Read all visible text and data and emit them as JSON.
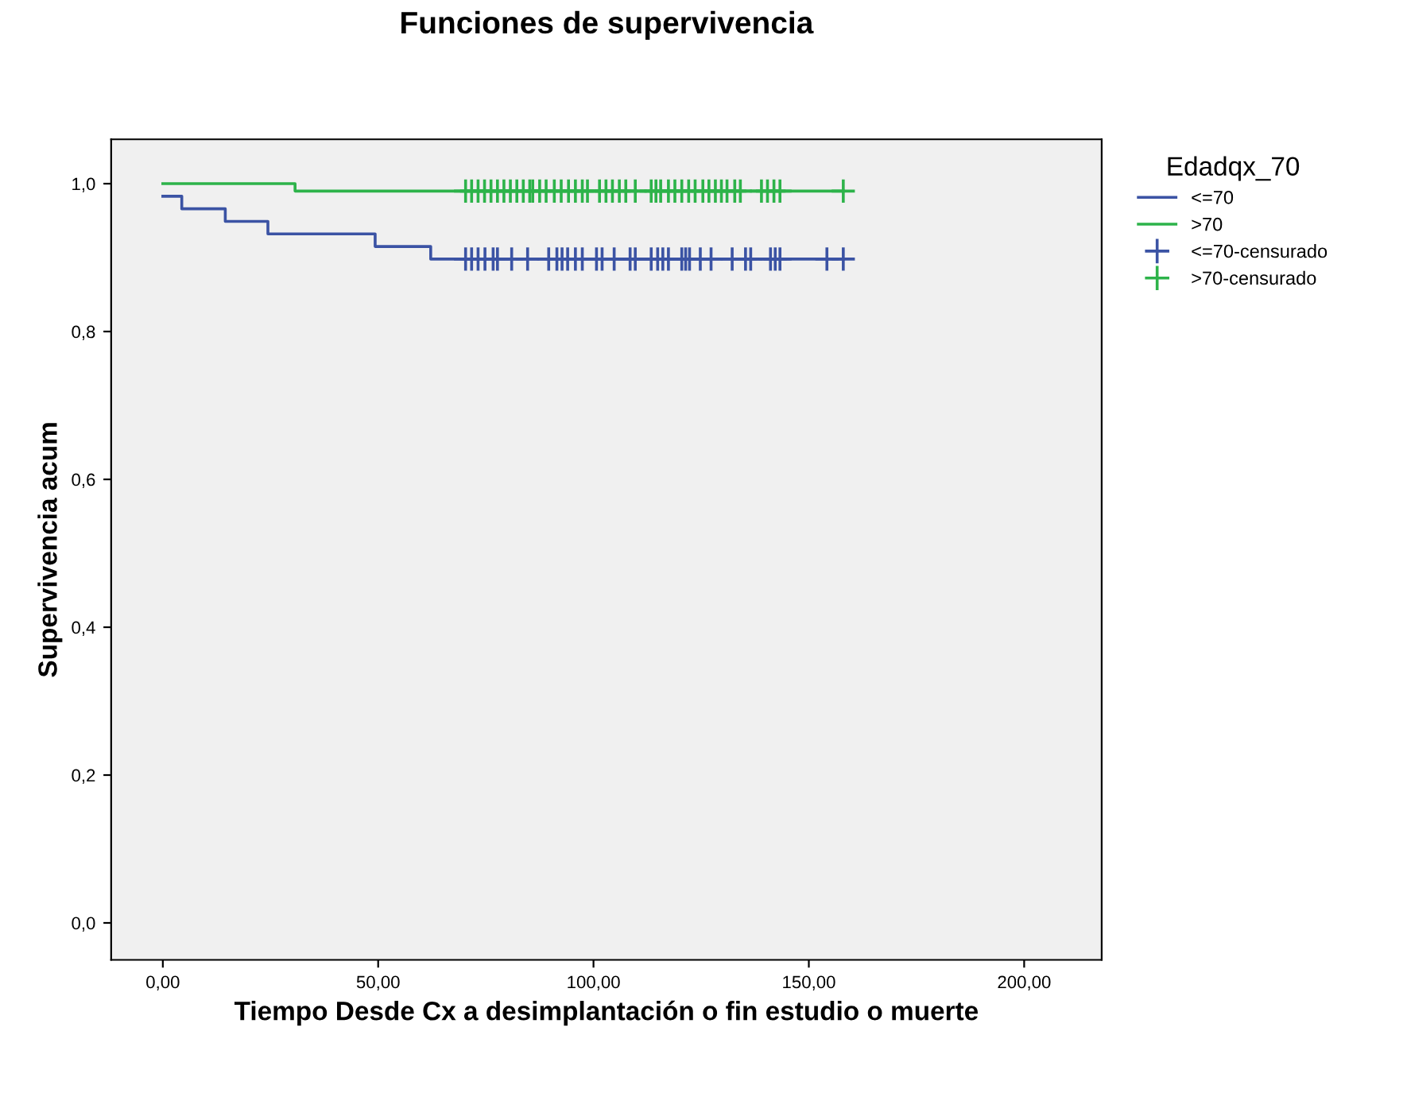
{
  "chart_data": {
    "type": "step",
    "title": "Funciones de supervivencia",
    "xlabel": "Tiempo Desde Cx a desimplantación o fin estudio o muerte",
    "ylabel": "Supervivencia acum",
    "legend_title": "Edadqx_70",
    "legend": "right",
    "grid": false,
    "xlim": [
      -12,
      218
    ],
    "ylim": [
      -0.05,
      1.06
    ],
    "xticks": [
      {
        "value": 0,
        "label": "0,00"
      },
      {
        "value": 50,
        "label": "50,00"
      },
      {
        "value": 100,
        "label": "100,00"
      },
      {
        "value": 150,
        "label": "150,00"
      },
      {
        "value": 200,
        "label": "200,00"
      }
    ],
    "yticks": [
      {
        "value": 0,
        "label": "0,0"
      },
      {
        "value": 0.2,
        "label": "0,2"
      },
      {
        "value": 0.4,
        "label": "0,4"
      },
      {
        "value": 0.6,
        "label": "0,6"
      },
      {
        "value": 0.8,
        "label": "0,8"
      },
      {
        "value": 1.0,
        "label": "1,0"
      }
    ],
    "series": [
      {
        "name": "<=70",
        "color": "#3b53a4",
        "x": [
          0,
          4.4,
          14.5,
          24.4,
          49.3,
          62.2,
          158
        ],
        "values": [
          0.983,
          0.966,
          0.949,
          0.932,
          0.915,
          0.898,
          0.898
        ]
      },
      {
        "name": ">70",
        "color": "#2db34a",
        "x": [
          0,
          30.7,
          158
        ],
        "values": [
          1.0,
          0.99,
          0.99
        ]
      },
      {
        "name": "<=70-censurado",
        "type": "scatter",
        "marker": "cross",
        "color": "#3b53a4",
        "x": [
          70.3,
          71.7,
          73.2,
          74.8,
          76.7,
          77.7,
          81,
          84.7,
          89.6,
          91.5,
          92.7,
          94,
          95.8,
          97.4,
          100.7,
          102,
          104.8,
          108.5,
          109.7,
          113.4,
          114.9,
          116.1,
          117.4,
          120.5,
          121.4,
          122.3,
          124.8,
          127.3,
          132.2,
          135.3,
          136.5,
          141.1,
          142.2,
          143.3,
          154.2,
          158
        ],
        "values": [
          0.898,
          0.898,
          0.898,
          0.898,
          0.898,
          0.898,
          0.898,
          0.898,
          0.898,
          0.898,
          0.898,
          0.898,
          0.898,
          0.898,
          0.898,
          0.898,
          0.898,
          0.898,
          0.898,
          0.898,
          0.898,
          0.898,
          0.898,
          0.898,
          0.898,
          0.898,
          0.898,
          0.898,
          0.898,
          0.898,
          0.898,
          0.898,
          0.898,
          0.898,
          0.898,
          0.898
        ]
      },
      {
        "name": ">70-censurado",
        "type": "scatter",
        "marker": "cross",
        "color": "#2db34a",
        "x": [
          70.3,
          71.7,
          73.2,
          74.7,
          76.2,
          77.7,
          79.2,
          80.7,
          82.2,
          83.7,
          85.2,
          85.9,
          87.5,
          89.0,
          90.9,
          92.5,
          94.2,
          95.8,
          97.4,
          98.6,
          101.4,
          102.9,
          104.4,
          106,
          107.5,
          109.7,
          113.4,
          114.5,
          115.6,
          117.4,
          118.9,
          120.5,
          122.1,
          123.6,
          125.4,
          126.8,
          128.3,
          129.7,
          131,
          132.8,
          134.1,
          139,
          140.4,
          141.9,
          143.3,
          158
        ],
        "values": [
          0.99,
          0.99,
          0.99,
          0.99,
          0.99,
          0.99,
          0.99,
          0.99,
          0.99,
          0.99,
          0.99,
          0.99,
          0.99,
          0.99,
          0.99,
          0.99,
          0.99,
          0.99,
          0.99,
          0.99,
          0.99,
          0.99,
          0.99,
          0.99,
          0.99,
          0.99,
          0.99,
          0.99,
          0.99,
          0.99,
          0.99,
          0.99,
          0.99,
          0.99,
          0.99,
          0.99,
          0.99,
          0.99,
          0.99,
          0.99,
          0.99,
          0.99,
          0.99,
          0.99,
          0.99,
          0.99
        ]
      }
    ]
  }
}
